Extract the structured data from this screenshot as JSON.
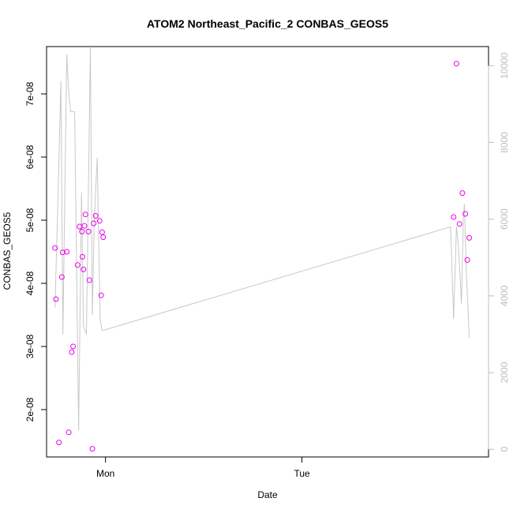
{
  "chart_data": {
    "type": "scatter",
    "title": "ATOM2 Northeast_Pacific_2 CONBAS_GEOS5",
    "xlabel": "Date",
    "ylabel": "CONBAS_GEOS5",
    "x_tick_labels": [
      "Mon",
      "Tue"
    ],
    "x_ticks_days": [
      0,
      1
    ],
    "xlim_days": [
      -0.3,
      1.95
    ],
    "y_tick_labels": [
      "2e-08",
      "3e-08",
      "4e-08",
      "5e-08",
      "6e-08",
      "7e-08"
    ],
    "y_ticks": [
      2e-08,
      3e-08,
      4e-08,
      5e-08,
      6e-08,
      7e-08
    ],
    "ylim": [
      1.25e-08,
      7.75e-08
    ],
    "y2_tick_labels": [
      "0",
      "2000",
      "4000",
      "6000",
      "8000",
      "10000"
    ],
    "y2_ticks": [
      0,
      2000,
      4000,
      6000,
      8000,
      10000
    ],
    "y2lim": [
      -200,
      10500
    ],
    "colors": {
      "points": "#ee00ee",
      "line": "#c8c8c8",
      "axis": "#000000",
      "axis2": "#bdbdbd"
    },
    "series": [
      {
        "type": "scatter",
        "axis": "left",
        "x_days": [
          -0.257,
          -0.252,
          -0.237,
          -0.222,
          -0.218,
          -0.197,
          -0.187,
          -0.172,
          -0.165,
          -0.142,
          -0.132,
          -0.12,
          -0.117,
          -0.112,
          -0.107,
          -0.102,
          -0.087,
          -0.082,
          -0.067,
          -0.06,
          -0.05,
          -0.03,
          -0.022,
          -0.017,
          -0.012,
          1.772,
          1.787,
          1.802,
          1.817,
          1.832,
          1.842,
          1.852
        ],
        "values": [
          4.56e-08,
          3.75e-08,
          1.48e-08,
          4.1e-08,
          4.49e-08,
          4.5e-08,
          1.64e-08,
          2.91e-08,
          3e-08,
          4.29e-08,
          4.9e-08,
          4.82e-08,
          4.42e-08,
          4.22e-08,
          4.91e-08,
          5.09e-08,
          4.82e-08,
          4.05e-08,
          1.38e-08,
          4.95e-08,
          5.07e-08,
          4.99e-08,
          3.81e-08,
          4.81e-08,
          4.73e-08,
          5.05e-08,
          7.48e-08,
          4.94e-08,
          5.43e-08,
          5.1e-08,
          4.37e-08,
          4.72e-08
        ]
      },
      {
        "type": "line",
        "axis": "right",
        "x_days": [
          -0.257,
          -0.242,
          -0.227,
          -0.217,
          -0.197,
          -0.187,
          -0.177,
          -0.157,
          -0.137,
          -0.122,
          -0.112,
          -0.097,
          -0.077,
          -0.067,
          -0.057,
          -0.042,
          -0.027,
          -0.017,
          -0.012,
          1.757,
          1.772,
          1.787,
          1.797,
          1.812,
          1.822,
          1.827,
          1.837,
          1.852
        ],
        "values": [
          3700,
          6500,
          9600,
          3000,
          10300,
          9300,
          8800,
          8800,
          500,
          6700,
          3200,
          3000,
          10500,
          3500,
          6000,
          7600,
          3400,
          3100,
          3100,
          5800,
          3400,
          5800,
          5300,
          3800,
          6000,
          6400,
          4600,
          2900
        ]
      }
    ]
  }
}
